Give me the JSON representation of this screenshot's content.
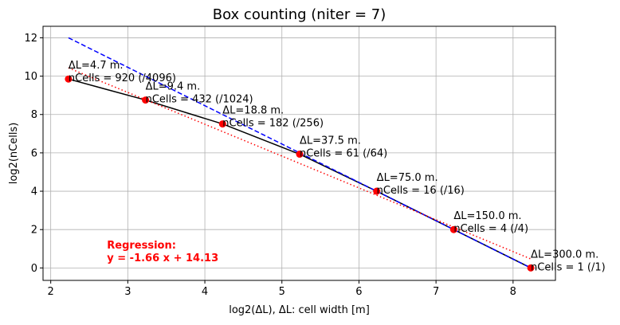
{
  "chart_data": {
    "type": "line",
    "title": "Box counting (niter = 7)",
    "xlabel": "log2(ΔL), ΔL: cell width [m]",
    "ylabel": "log2(nCells)",
    "xlim": [
      1.9,
      8.55
    ],
    "ylim": [
      -0.65,
      12.6
    ],
    "xticks": [
      2,
      3,
      4,
      5,
      6,
      7,
      8
    ],
    "yticks": [
      0,
      2,
      4,
      6,
      8,
      10,
      12
    ],
    "grid": true,
    "points": {
      "x": [
        2.23,
        3.23,
        4.23,
        5.23,
        6.23,
        7.23,
        8.23
      ],
      "y": [
        9.85,
        8.755,
        7.508,
        5.931,
        4.0,
        2.0,
        0.0
      ],
      "color": "#ff0000"
    },
    "series": [
      {
        "style": "solid",
        "color": "#000000",
        "x": [
          2.23,
          3.23,
          4.23,
          5.23,
          6.23,
          7.23,
          8.23
        ],
        "y": [
          9.85,
          8.755,
          7.508,
          5.931,
          4.0,
          2.0,
          0.0
        ]
      },
      {
        "style": "dashed",
        "color": "#0000ff",
        "x": [
          2.23,
          8.23
        ],
        "y": [
          12.0,
          0.0
        ]
      },
      {
        "style": "dotted",
        "color": "#ff0000",
        "x": [
          2.23,
          8.23
        ],
        "y": [
          10.43,
          0.47
        ]
      }
    ],
    "annotations": [
      {
        "x": 2.23,
        "y": 9.85,
        "line1": "ΔL=4.7 m.",
        "line2": "nCells = 920 (/4096)"
      },
      {
        "x": 3.23,
        "y": 8.755,
        "line1": "ΔL=9.4 m.",
        "line2": "nCells = 432 (/1024)"
      },
      {
        "x": 4.23,
        "y": 7.508,
        "line1": "ΔL=18.8 m.",
        "line2": "nCells = 182 (/256)"
      },
      {
        "x": 5.23,
        "y": 5.931,
        "line1": "ΔL=37.5 m.",
        "line2": "nCells = 61 (/64)"
      },
      {
        "x": 6.23,
        "y": 4.0,
        "line1": "ΔL=75.0 m.",
        "line2": "nCells = 16 (/16)"
      },
      {
        "x": 7.23,
        "y": 2.0,
        "line1": "ΔL=150.0 m.",
        "line2": "nCells = 4 (/4)"
      },
      {
        "x": 8.23,
        "y": 0.0,
        "line1": "ΔL=300.0 m.",
        "line2": "nCells = 1 (/1)"
      }
    ],
    "regression": {
      "line1": "Regression:",
      "line2": "y = -1.66 x + 14.13",
      "color": "#ff0000",
      "x": 2.73,
      "y": 0.55
    }
  }
}
